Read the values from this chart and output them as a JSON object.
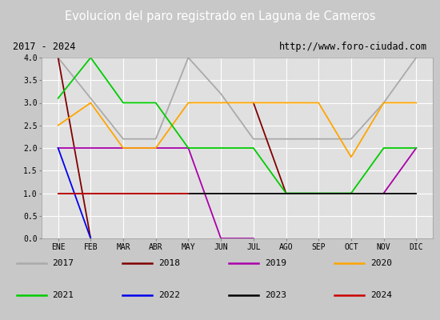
{
  "title": "Evolucion del paro registrado en Laguna de Cameros",
  "subtitle_left": "2017 - 2024",
  "subtitle_right": "http://www.foro-ciudad.com",
  "months": [
    "ENE",
    "FEB",
    "MAR",
    "ABR",
    "MAY",
    "JUN",
    "JUL",
    "AGO",
    "SEP",
    "OCT",
    "NOV",
    "DIC"
  ],
  "ylim": [
    0.0,
    4.0
  ],
  "yticks": [
    0.0,
    0.5,
    1.0,
    1.5,
    2.0,
    2.5,
    3.0,
    3.5,
    4.0
  ],
  "series": [
    {
      "year": "2017",
      "color": "#aaaaaa",
      "data": [
        4.0,
        3.1,
        2.2,
        2.2,
        4.0,
        3.2,
        2.2,
        2.2,
        2.2,
        2.2,
        3.0,
        4.0
      ]
    },
    {
      "year": "2018",
      "color": "#800000",
      "data": [
        4.0,
        0.0,
        null,
        null,
        null,
        null,
        3.0,
        1.0,
        null,
        null,
        null,
        1.0
      ]
    },
    {
      "year": "2019",
      "color": "#aa00aa",
      "data": [
        2.0,
        2.0,
        2.0,
        2.0,
        2.0,
        0.0,
        0.0,
        null,
        null,
        null,
        1.0,
        2.0
      ]
    },
    {
      "year": "2020",
      "color": "#ffa500",
      "data": [
        2.5,
        3.0,
        2.0,
        2.0,
        3.0,
        3.0,
        3.0,
        3.0,
        3.0,
        1.8,
        3.0,
        3.0
      ]
    },
    {
      "year": "2021",
      "color": "#00cc00",
      "data": [
        3.1,
        4.0,
        3.0,
        3.0,
        2.0,
        2.0,
        2.0,
        1.0,
        1.0,
        1.0,
        2.0,
        2.0
      ]
    },
    {
      "year": "2022",
      "color": "#0000ee",
      "data": [
        2.0,
        0.0,
        null,
        null,
        null,
        null,
        null,
        null,
        null,
        null,
        null,
        null
      ]
    },
    {
      "year": "2023",
      "color": "#000000",
      "data": [
        1.0,
        1.0,
        1.0,
        1.0,
        1.0,
        1.0,
        1.0,
        1.0,
        1.0,
        1.0,
        1.0,
        1.0
      ]
    },
    {
      "year": "2024",
      "color": "#cc0000",
      "data": [
        1.0,
        1.0,
        1.0,
        1.0,
        1.0,
        null,
        null,
        null,
        null,
        null,
        null,
        null
      ]
    }
  ],
  "title_bg_color": "#4a90d9",
  "title_text_color": "#ffffff",
  "plot_bg_color": "#e0e0e0",
  "grid_color": "#ffffff",
  "outer_bg_color": "#c8c8c8",
  "subtitle_box_color": "#f0f0f0",
  "legend_bg_color": "#d8d8d8"
}
